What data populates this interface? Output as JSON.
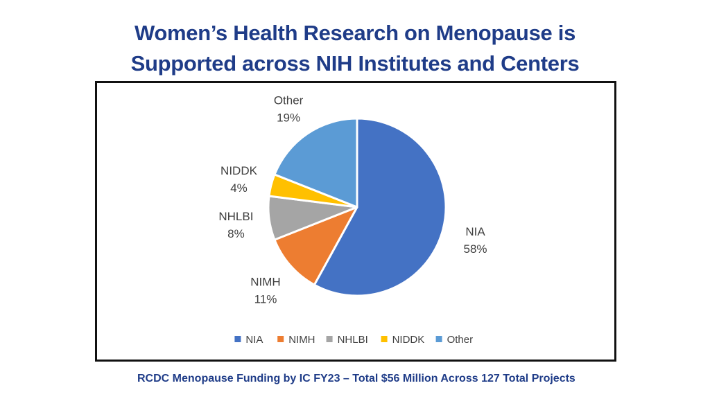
{
  "title_line1": "Women’s Health Research on Menopause is",
  "title_line2": "Supported across NIH Institutes and Centers",
  "caption": "RCDC Menopause Funding by IC FY23 – Total $56 Million Across 127 Total Projects",
  "chart_data": {
    "type": "pie",
    "slices": [
      {
        "label": "NIA",
        "value": 58,
        "display": "58%",
        "color": "#4472c4"
      },
      {
        "label": "NIMH",
        "value": 11,
        "display": "11%",
        "color": "#ed7d31"
      },
      {
        "label": "NHLBI",
        "value": 8,
        "display": "8%",
        "color": "#a5a5a5"
      },
      {
        "label": "NIDDK",
        "value": 4,
        "display": "4%",
        "color": "#ffc000"
      },
      {
        "label": "Other",
        "value": 19,
        "display": "19%",
        "color": "#5b9bd5"
      }
    ],
    "legend": [
      "NIA",
      "NIMH",
      "NHLBI",
      "NIDDK",
      "Other"
    ],
    "legend_placement": "bottom",
    "start_angle_deg": 0,
    "direction": "clockwise"
  }
}
